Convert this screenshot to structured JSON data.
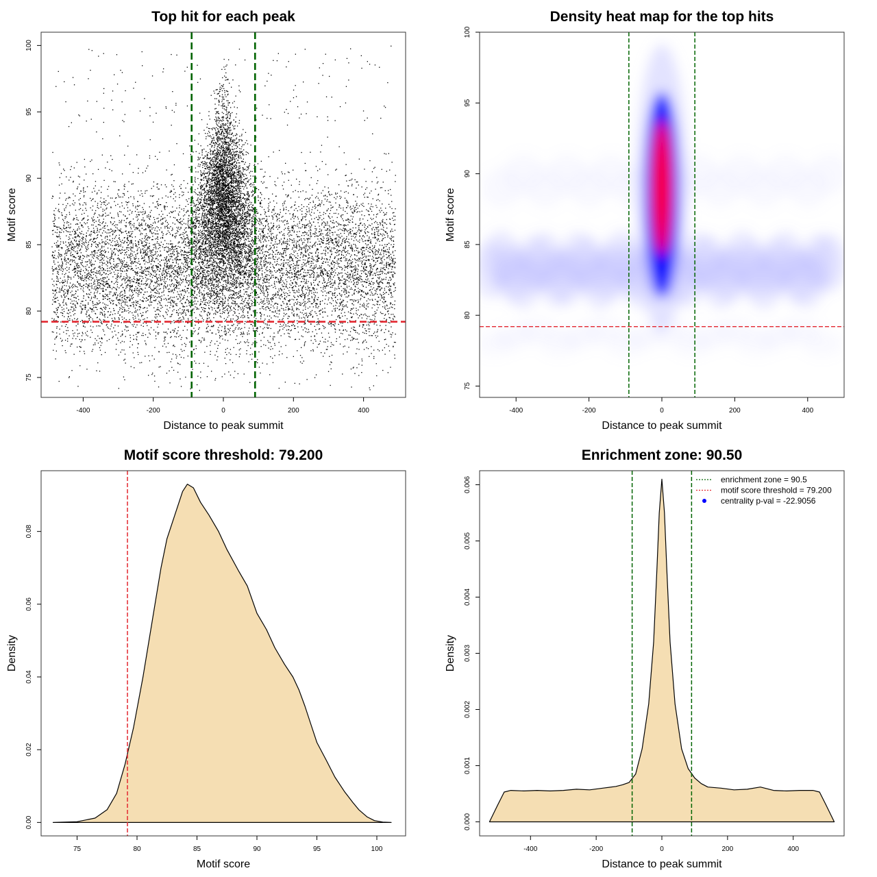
{
  "chart_data": [
    {
      "type": "scatter",
      "title": "Top hit for each peak",
      "xlabel": "Distance to peak summit",
      "ylabel": "Motif score",
      "xlim": [
        -520,
        520
      ],
      "ylim": [
        73.5,
        101
      ],
      "xticks": [
        -400,
        -200,
        0,
        200,
        400
      ],
      "yticks": [
        75,
        80,
        85,
        90,
        95,
        100
      ],
      "xtick_labels": [
        "-400",
        "-200",
        "0",
        "200",
        "400"
      ],
      "ytick_labels": [
        "75",
        "80",
        "85",
        "90",
        "95",
        "100"
      ],
      "vlines": [
        -90.5,
        90.5
      ],
      "hline": 79.2,
      "point_color": "#000000",
      "vline_color": "#006400",
      "hline_color": "#e3262f"
    },
    {
      "type": "heatmap",
      "title": "Density heat map for the top hits",
      "xlabel": "Distance to peak summit",
      "ylabel": "Motif score",
      "xlim": [
        -500,
        500
      ],
      "ylim": [
        74.2,
        100
      ],
      "xticks": [
        -400,
        -200,
        0,
        200,
        400
      ],
      "yticks": [
        75,
        80,
        85,
        90,
        95,
        100
      ],
      "xtick_labels": [
        "-400",
        "-200",
        "0",
        "200",
        "400"
      ],
      "ytick_labels": [
        "75",
        "80",
        "85",
        "90",
        "95",
        "100"
      ],
      "vlines": [
        -90.5,
        90.5
      ],
      "hline": 79.2,
      "colors": [
        "#ffffff",
        "#0000ff",
        "#ff0000"
      ],
      "vline_color": "#006400",
      "hline_color": "#e3262f"
    },
    {
      "type": "area",
      "title": "Motif score threshold: 79.200",
      "xlabel": "Motif score",
      "ylabel": "Density",
      "xlim": [
        72,
        102.4
      ],
      "ylim": [
        -0.0037,
        0.0967
      ],
      "xticks": [
        75,
        80,
        85,
        90,
        95,
        100
      ],
      "yticks": [
        0,
        0.02,
        0.04,
        0.06,
        0.08
      ],
      "xtick_labels": [
        "75",
        "80",
        "85",
        "90",
        "95",
        "100"
      ],
      "ytick_labels": [
        "0.00",
        "0.02",
        "0.04",
        "0.06",
        "0.08"
      ],
      "x": [
        73.0,
        75.0,
        76.5,
        77.5,
        78.3,
        79.0,
        79.7,
        80.5,
        81.3,
        82.0,
        82.5,
        83.2,
        83.8,
        84.2,
        84.7,
        85.3,
        86.0,
        86.8,
        87.5,
        88.5,
        89.2,
        90.0,
        90.8,
        91.5,
        92.3,
        93.0,
        93.5,
        94.0,
        94.5,
        95.0,
        95.8,
        96.5,
        97.3,
        98.0,
        98.5,
        99.2,
        99.8,
        100.5,
        101.2
      ],
      "values": [
        0.0,
        0.0002,
        0.0012,
        0.0035,
        0.008,
        0.016,
        0.026,
        0.04,
        0.056,
        0.07,
        0.078,
        0.085,
        0.091,
        0.093,
        0.092,
        0.088,
        0.0845,
        0.08,
        0.075,
        0.069,
        0.065,
        0.0575,
        0.053,
        0.048,
        0.0435,
        0.04,
        0.0365,
        0.032,
        0.027,
        0.022,
        0.017,
        0.0125,
        0.0085,
        0.0055,
        0.0035,
        0.0015,
        0.0005,
        0.0001,
        0.0
      ],
      "vline": 79.2,
      "fill_color": "#f5deb3",
      "line_color": "#000000",
      "vline_color": "#e3262f"
    },
    {
      "type": "area",
      "title": "Enrichment zone: 90.50",
      "xlabel": "Distance to peak summit",
      "ylabel": "Density",
      "xlim": [
        -555,
        555
      ],
      "ylim": [
        -0.00025,
        0.00625
      ],
      "xticks": [
        -400,
        -200,
        0,
        200,
        400
      ],
      "yticks": [
        0,
        0.001,
        0.002,
        0.003,
        0.004,
        0.005,
        0.006
      ],
      "xtick_labels": [
        "-400",
        "-200",
        "0",
        "200",
        "400"
      ],
      "ytick_labels": [
        "0.000",
        "0.001",
        "0.002",
        "0.003",
        "0.004",
        "0.005",
        "0.006"
      ],
      "x": [
        -525,
        -500,
        -480,
        -460,
        -420,
        -380,
        -340,
        -300,
        -260,
        -220,
        -180,
        -140,
        -120,
        -100,
        -80,
        -60,
        -40,
        -25,
        -15,
        -8,
        0,
        8,
        15,
        25,
        40,
        60,
        80,
        100,
        120,
        140,
        180,
        220,
        260,
        300,
        340,
        380,
        420,
        460,
        480,
        500,
        525
      ],
      "values": [
        0.0,
        0.0003,
        0.00053,
        0.00056,
        0.00055,
        0.00056,
        0.00055,
        0.00056,
        0.00058,
        0.00057,
        0.0006,
        0.00063,
        0.00066,
        0.0007,
        0.00085,
        0.0013,
        0.0021,
        0.0032,
        0.0045,
        0.0055,
        0.0061,
        0.0055,
        0.0045,
        0.0032,
        0.0021,
        0.0013,
        0.00095,
        0.00078,
        0.00068,
        0.00062,
        0.0006,
        0.00057,
        0.00058,
        0.00062,
        0.00056,
        0.00055,
        0.00056,
        0.00056,
        0.00053,
        0.0003,
        0.0
      ],
      "vlines": [
        -90.5,
        90.5
      ],
      "fill_color": "#f5deb3",
      "line_color": "#000000",
      "vline_color": "#006400",
      "legend": {
        "placement": "top-right",
        "entries": [
          {
            "label": "enrichment zone = 90.5",
            "type": "line",
            "style": "dotted",
            "color": "#006400"
          },
          {
            "label": "motif score threshold = 79.200",
            "type": "line",
            "style": "dotted",
            "color": "#e3262f"
          },
          {
            "label": "centrality p-val = -22.9056",
            "type": "point",
            "color": "#0000ff"
          }
        ]
      }
    }
  ]
}
